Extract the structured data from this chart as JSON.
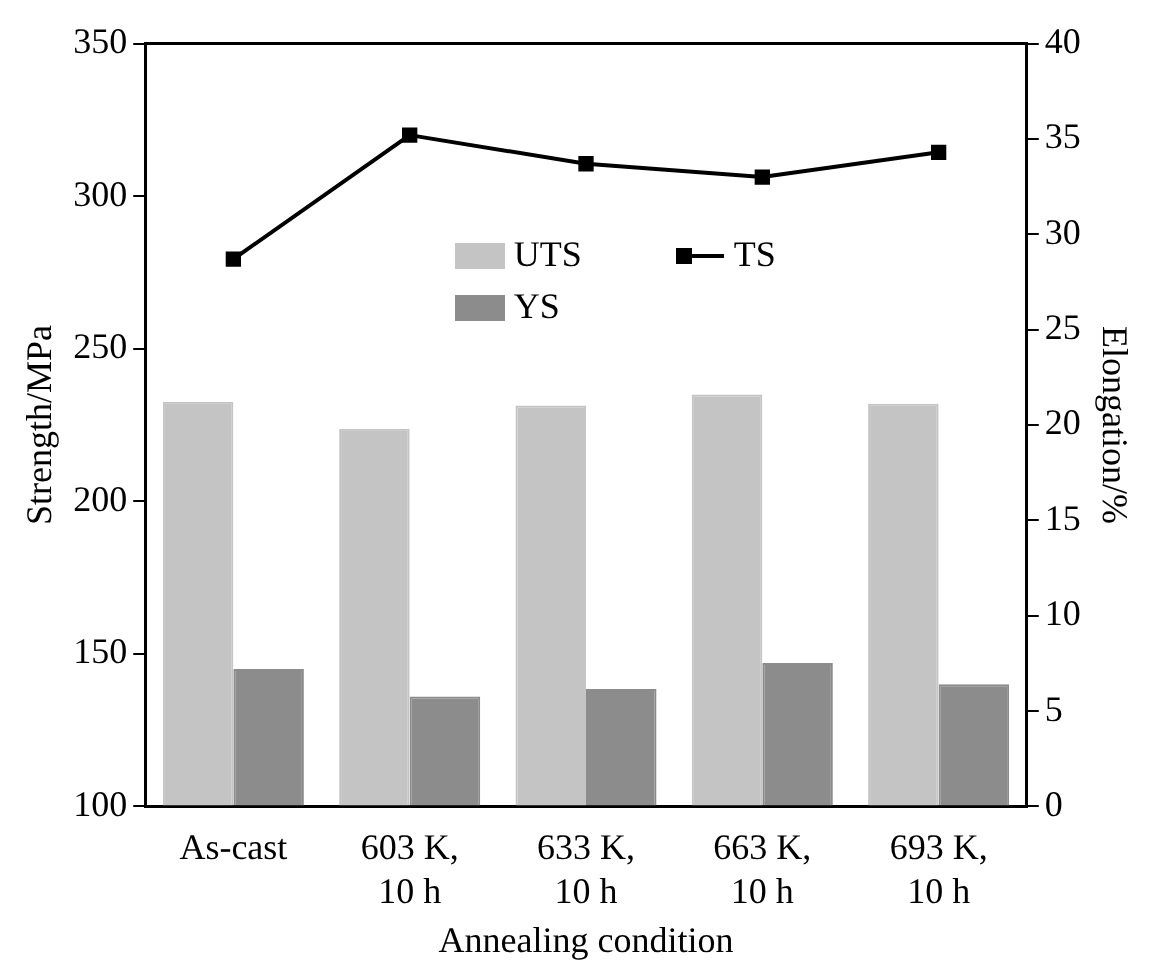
{
  "chart_data": {
    "type": "bar",
    "xlabel": "Annealing condition",
    "ylabel": "Strength/MPa",
    "y2label": "Elongation/%",
    "categories": [
      "As-cast",
      "603 K,\n10 h",
      "633 K,\n10 h",
      "663 K,\n10 h",
      "693 K,\n10 h"
    ],
    "series": [
      {
        "name": "UTS",
        "color": "#c4c4c4",
        "values": [
          232.6,
          223.8,
          231.4,
          235,
          232
        ]
      },
      {
        "name": "YS",
        "color": "#8c8c8c",
        "values": [
          145,
          136,
          138.5,
          147,
          140
        ]
      },
      {
        "name": "TS",
        "type": "line",
        "axis": "y2",
        "color": "#000000",
        "values": [
          28.7,
          35.2,
          33.7,
          33.0,
          34.3
        ]
      }
    ],
    "ylim": [
      100,
      350
    ],
    "yticks": [
      100,
      150,
      200,
      250,
      300,
      350
    ],
    "y2lim": [
      0,
      40
    ],
    "y2ticks": [
      0,
      5,
      10,
      15,
      20,
      25,
      30,
      35,
      40
    ],
    "grid": false,
    "legend": "top",
    "marker": "square",
    "line_style": "solid"
  }
}
